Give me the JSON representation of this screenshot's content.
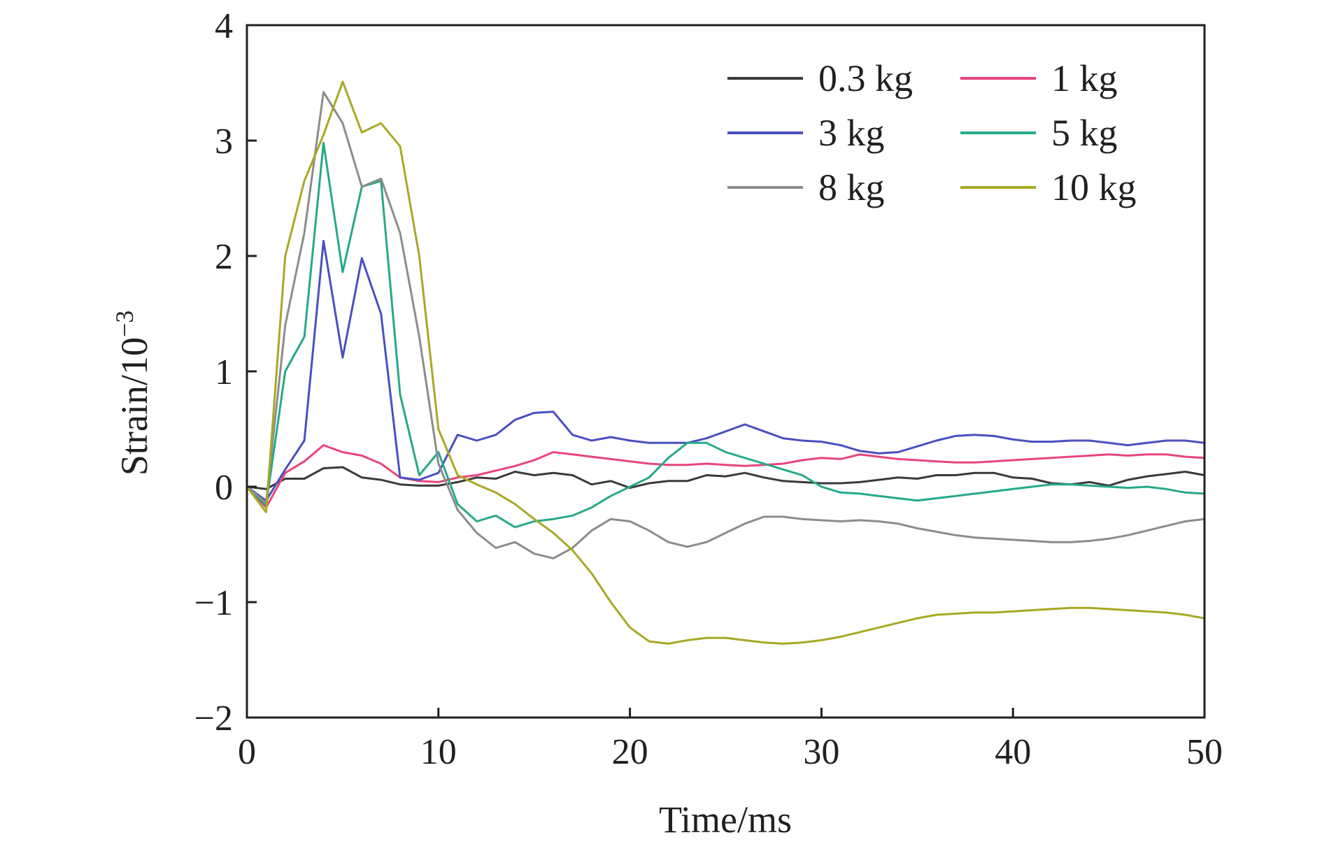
{
  "chart_data": {
    "type": "line",
    "title": "",
    "xlabel": "Time/ms",
    "ylabel": "Strain/10",
    "ylabel_exponent": "−3",
    "xlim": [
      0,
      50
    ],
    "ylim": [
      -2,
      4
    ],
    "xticks": [
      0,
      10,
      20,
      30,
      40,
      50
    ],
    "yticks": [
      -2,
      -1,
      0,
      1,
      2,
      3,
      4
    ],
    "xtick_labels": [
      "0",
      "10",
      "20",
      "30",
      "40",
      "50"
    ],
    "ytick_labels": [
      "−2",
      "−1",
      "0",
      "1",
      "2",
      "3",
      "4"
    ],
    "grid": false,
    "legend_position": "top-right",
    "series": [
      {
        "name": "0.3 kg",
        "color": "#3a3a3a",
        "x": [
          0,
          1,
          2,
          3,
          4,
          5,
          6,
          7,
          8,
          9,
          10,
          11,
          12,
          13,
          14,
          15,
          16,
          17,
          18,
          19,
          20,
          21,
          22,
          23,
          24,
          25,
          26,
          27,
          28,
          29,
          30,
          31,
          32,
          33,
          34,
          35,
          36,
          37,
          38,
          39,
          40,
          41,
          42,
          43,
          44,
          45,
          46,
          47,
          48,
          49,
          50
        ],
        "y": [
          0,
          -0.02,
          0.07,
          0.07,
          0.16,
          0.17,
          0.08,
          0.06,
          0.02,
          0.01,
          0.01,
          0.04,
          0.08,
          0.07,
          0.13,
          0.1,
          0.12,
          0.1,
          0.02,
          0.05,
          -0.01,
          0.03,
          0.05,
          0.05,
          0.1,
          0.09,
          0.12,
          0.08,
          0.05,
          0.04,
          0.03,
          0.03,
          0.04,
          0.06,
          0.08,
          0.07,
          0.1,
          0.1,
          0.12,
          0.12,
          0.08,
          0.07,
          0.03,
          0.02,
          0.04,
          0.01,
          0.06,
          0.09,
          0.11,
          0.13,
          0.1
        ]
      },
      {
        "name": "1 kg",
        "color": "#e8457a",
        "x": [
          0,
          1,
          2,
          3,
          4,
          5,
          6,
          7,
          8,
          9,
          10,
          11,
          12,
          13,
          14,
          15,
          16,
          17,
          18,
          19,
          20,
          21,
          22,
          23,
          24,
          25,
          26,
          27,
          28,
          29,
          30,
          31,
          32,
          33,
          34,
          35,
          36,
          37,
          38,
          39,
          40,
          41,
          42,
          43,
          44,
          45,
          46,
          47,
          48,
          49,
          50
        ],
        "y": [
          0,
          -0.18,
          0.12,
          0.22,
          0.36,
          0.3,
          0.27,
          0.2,
          0.08,
          0.05,
          0.04,
          0.08,
          0.1,
          0.14,
          0.18,
          0.23,
          0.3,
          0.28,
          0.26,
          0.24,
          0.22,
          0.2,
          0.19,
          0.19,
          0.2,
          0.19,
          0.18,
          0.19,
          0.2,
          0.23,
          0.25,
          0.24,
          0.28,
          0.26,
          0.24,
          0.23,
          0.22,
          0.21,
          0.21,
          0.22,
          0.23,
          0.24,
          0.25,
          0.26,
          0.27,
          0.28,
          0.27,
          0.28,
          0.28,
          0.26,
          0.25
        ]
      },
      {
        "name": "3 kg",
        "color": "#4a4fc0",
        "x": [
          0,
          1,
          2,
          3,
          4,
          5,
          6,
          7,
          8,
          9,
          10,
          11,
          12,
          13,
          14,
          15,
          16,
          17,
          18,
          19,
          20,
          21,
          22,
          23,
          24,
          25,
          26,
          27,
          28,
          29,
          30,
          31,
          32,
          33,
          34,
          35,
          36,
          37,
          38,
          39,
          40,
          41,
          42,
          43,
          44,
          45,
          46,
          47,
          48,
          49,
          50
        ],
        "y": [
          0,
          -0.12,
          0.15,
          0.4,
          2.13,
          1.12,
          1.98,
          1.5,
          0.08,
          0.06,
          0.12,
          0.45,
          0.4,
          0.45,
          0.58,
          0.64,
          0.65,
          0.45,
          0.4,
          0.43,
          0.4,
          0.38,
          0.38,
          0.38,
          0.42,
          0.48,
          0.54,
          0.48,
          0.42,
          0.4,
          0.39,
          0.36,
          0.31,
          0.29,
          0.3,
          0.35,
          0.4,
          0.44,
          0.45,
          0.44,
          0.41,
          0.39,
          0.39,
          0.4,
          0.4,
          0.38,
          0.36,
          0.38,
          0.4,
          0.4,
          0.38
        ]
      },
      {
        "name": "5 kg",
        "color": "#26a98a",
        "x": [
          0,
          1,
          2,
          3,
          4,
          5,
          6,
          7,
          8,
          9,
          10,
          11,
          12,
          13,
          14,
          15,
          16,
          17,
          18,
          19,
          20,
          21,
          22,
          23,
          24,
          25,
          26,
          27,
          28,
          29,
          30,
          31,
          32,
          33,
          34,
          35,
          36,
          37,
          38,
          39,
          40,
          41,
          42,
          43,
          44,
          45,
          46,
          47,
          48,
          49,
          50
        ],
        "y": [
          0,
          -0.16,
          1.0,
          1.3,
          2.98,
          1.86,
          2.6,
          2.65,
          0.8,
          0.1,
          0.3,
          -0.15,
          -0.3,
          -0.25,
          -0.35,
          -0.3,
          -0.28,
          -0.25,
          -0.18,
          -0.08,
          0.0,
          0.08,
          0.25,
          0.38,
          0.38,
          0.3,
          0.25,
          0.2,
          0.15,
          0.1,
          0.0,
          -0.05,
          -0.06,
          -0.08,
          -0.1,
          -0.12,
          -0.1,
          -0.08,
          -0.06,
          -0.04,
          -0.02,
          0.0,
          0.02,
          0.02,
          0.01,
          0.0,
          -0.01,
          0.0,
          -0.02,
          -0.05,
          -0.06
        ]
      },
      {
        "name": "8 kg",
        "color": "#8c8c8c",
        "x": [
          0,
          1,
          2,
          3,
          4,
          5,
          6,
          7,
          8,
          9,
          10,
          11,
          12,
          13,
          14,
          15,
          16,
          17,
          18,
          19,
          20,
          21,
          22,
          23,
          24,
          25,
          26,
          27,
          28,
          29,
          30,
          31,
          32,
          33,
          34,
          35,
          36,
          37,
          38,
          39,
          40,
          41,
          42,
          43,
          44,
          45,
          46,
          47,
          48,
          49,
          50
        ],
        "y": [
          0,
          -0.14,
          1.4,
          2.2,
          3.42,
          3.15,
          2.6,
          2.67,
          2.2,
          1.3,
          0.2,
          -0.2,
          -0.4,
          -0.53,
          -0.48,
          -0.58,
          -0.62,
          -0.53,
          -0.38,
          -0.28,
          -0.3,
          -0.38,
          -0.48,
          -0.52,
          -0.48,
          -0.4,
          -0.32,
          -0.26,
          -0.26,
          -0.28,
          -0.29,
          -0.3,
          -0.29,
          -0.3,
          -0.32,
          -0.36,
          -0.39,
          -0.42,
          -0.44,
          -0.45,
          -0.46,
          -0.47,
          -0.48,
          -0.48,
          -0.47,
          -0.45,
          -0.42,
          -0.38,
          -0.34,
          -0.3,
          -0.28
        ]
      },
      {
        "name": "10 kg",
        "color": "#a8a825",
        "x": [
          0,
          1,
          2,
          3,
          4,
          5,
          6,
          7,
          8,
          9,
          10,
          11,
          12,
          13,
          14,
          15,
          16,
          17,
          18,
          19,
          20,
          21,
          22,
          23,
          24,
          25,
          26,
          27,
          28,
          29,
          30,
          31,
          32,
          33,
          34,
          35,
          36,
          37,
          38,
          39,
          40,
          41,
          42,
          43,
          44,
          45,
          46,
          47,
          48,
          49,
          50
        ],
        "y": [
          0,
          -0.22,
          2.0,
          2.65,
          3.05,
          3.51,
          3.07,
          3.15,
          2.95,
          2.0,
          0.5,
          0.1,
          0.02,
          -0.05,
          -0.15,
          -0.28,
          -0.4,
          -0.55,
          -0.75,
          -1.0,
          -1.22,
          -1.34,
          -1.36,
          -1.33,
          -1.31,
          -1.31,
          -1.33,
          -1.35,
          -1.36,
          -1.35,
          -1.33,
          -1.3,
          -1.26,
          -1.22,
          -1.18,
          -1.14,
          -1.11,
          -1.1,
          -1.09,
          -1.09,
          -1.08,
          -1.07,
          -1.06,
          -1.05,
          -1.05,
          -1.06,
          -1.07,
          -1.08,
          -1.09,
          -1.11,
          -1.14
        ]
      }
    ]
  }
}
